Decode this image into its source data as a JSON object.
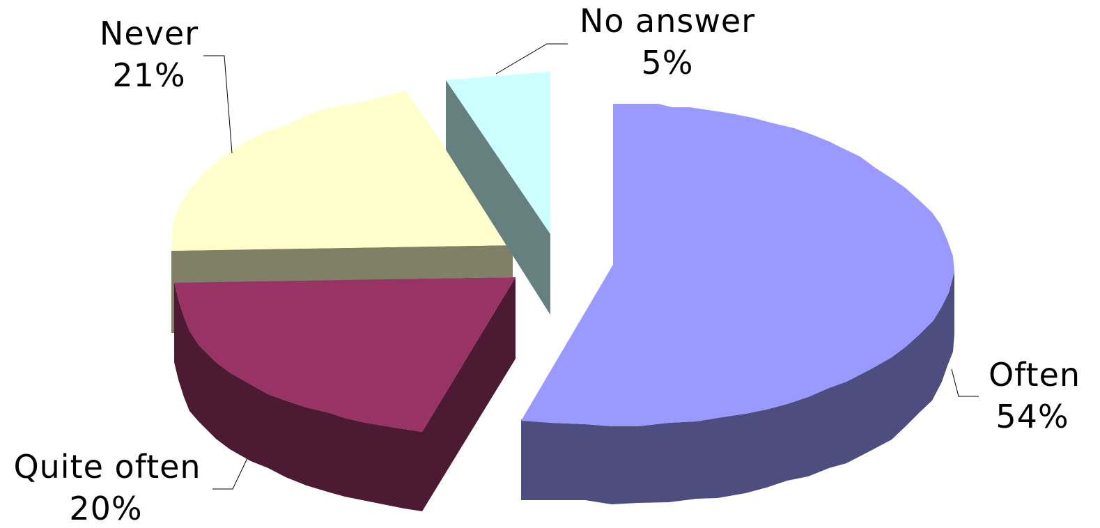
{
  "chart_data": {
    "type": "pie",
    "style": "3d-exploded",
    "title": "",
    "slices": [
      {
        "category": "Often",
        "percent_label": "54%",
        "value": 54,
        "top_color": "#9999ff",
        "side_color": "#4d4d80"
      },
      {
        "category": "Quite often",
        "percent_label": "20%",
        "value": 20,
        "top_color": "#993366",
        "side_color": "#4d1a33"
      },
      {
        "category": "Never",
        "percent_label": "21%",
        "value": 21,
        "top_color": "#ffffcc",
        "side_color": "#808066"
      },
      {
        "category": "No answer",
        "percent_label": "5%",
        "value": 5,
        "top_color": "#ccffff",
        "side_color": "#668080"
      }
    ],
    "legend": "none"
  }
}
